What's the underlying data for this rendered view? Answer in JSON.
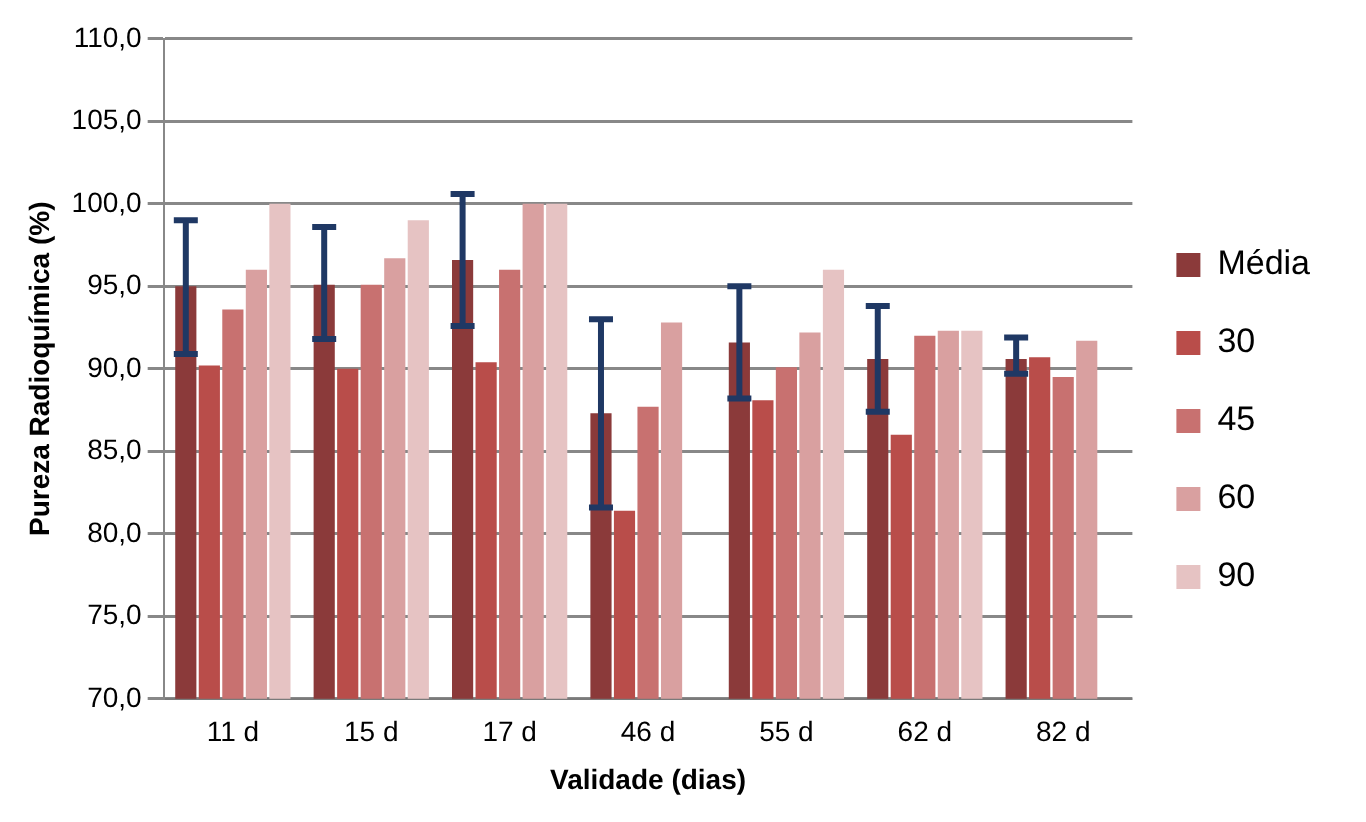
{
  "chart_data": {
    "type": "bar",
    "xlabel": "Validade (dias)",
    "ylabel": "Pureza Radioquímica (%)",
    "categories": [
      "11 d",
      "15 d",
      "17 d",
      "46 d",
      "55 d",
      "62 d",
      "82 d"
    ],
    "series": [
      {
        "name": "Média",
        "color": "#8b3a3a",
        "values": [
          95.0,
          95.1,
          96.6,
          87.3,
          91.6,
          90.6,
          90.6
        ],
        "errors": [
          [
            90.9,
            99.0
          ],
          [
            91.8,
            98.6
          ],
          [
            92.6,
            100.6
          ],
          [
            81.6,
            93.0
          ],
          [
            88.2,
            95.0
          ],
          [
            87.4,
            93.8
          ],
          [
            89.7,
            91.9
          ]
        ]
      },
      {
        "name": "30",
        "color": "#b94d4a",
        "values": [
          90.2,
          90.0,
          90.4,
          81.4,
          88.1,
          86.0,
          90.7
        ]
      },
      {
        "name": "45",
        "color": "#c87170",
        "values": [
          93.6,
          95.1,
          96.0,
          87.7,
          90.1,
          92.0,
          89.5
        ]
      },
      {
        "name": "60",
        "color": "#d9a0a0",
        "values": [
          96.0,
          96.7,
          100.0,
          92.8,
          92.2,
          92.3,
          91.7
        ]
      },
      {
        "name": "90",
        "color": "#e6c3c3",
        "values": [
          100.0,
          99.0,
          100.0,
          null,
          96.0,
          92.3,
          null
        ]
      }
    ],
    "ylim": [
      70,
      110
    ],
    "yticks": [
      {
        "value": 70,
        "label": "70,0"
      },
      {
        "value": 75,
        "label": "75,0"
      },
      {
        "value": 80,
        "label": "80,0"
      },
      {
        "value": 85,
        "label": "85,0"
      },
      {
        "value": 90,
        "label": "90,0"
      },
      {
        "value": 95,
        "label": "95,0"
      },
      {
        "value": 100,
        "label": "100,0"
      },
      {
        "value": 105,
        "label": "105,0"
      },
      {
        "value": 110,
        "label": "110,0"
      }
    ],
    "grid": "y",
    "legend": "right"
  }
}
